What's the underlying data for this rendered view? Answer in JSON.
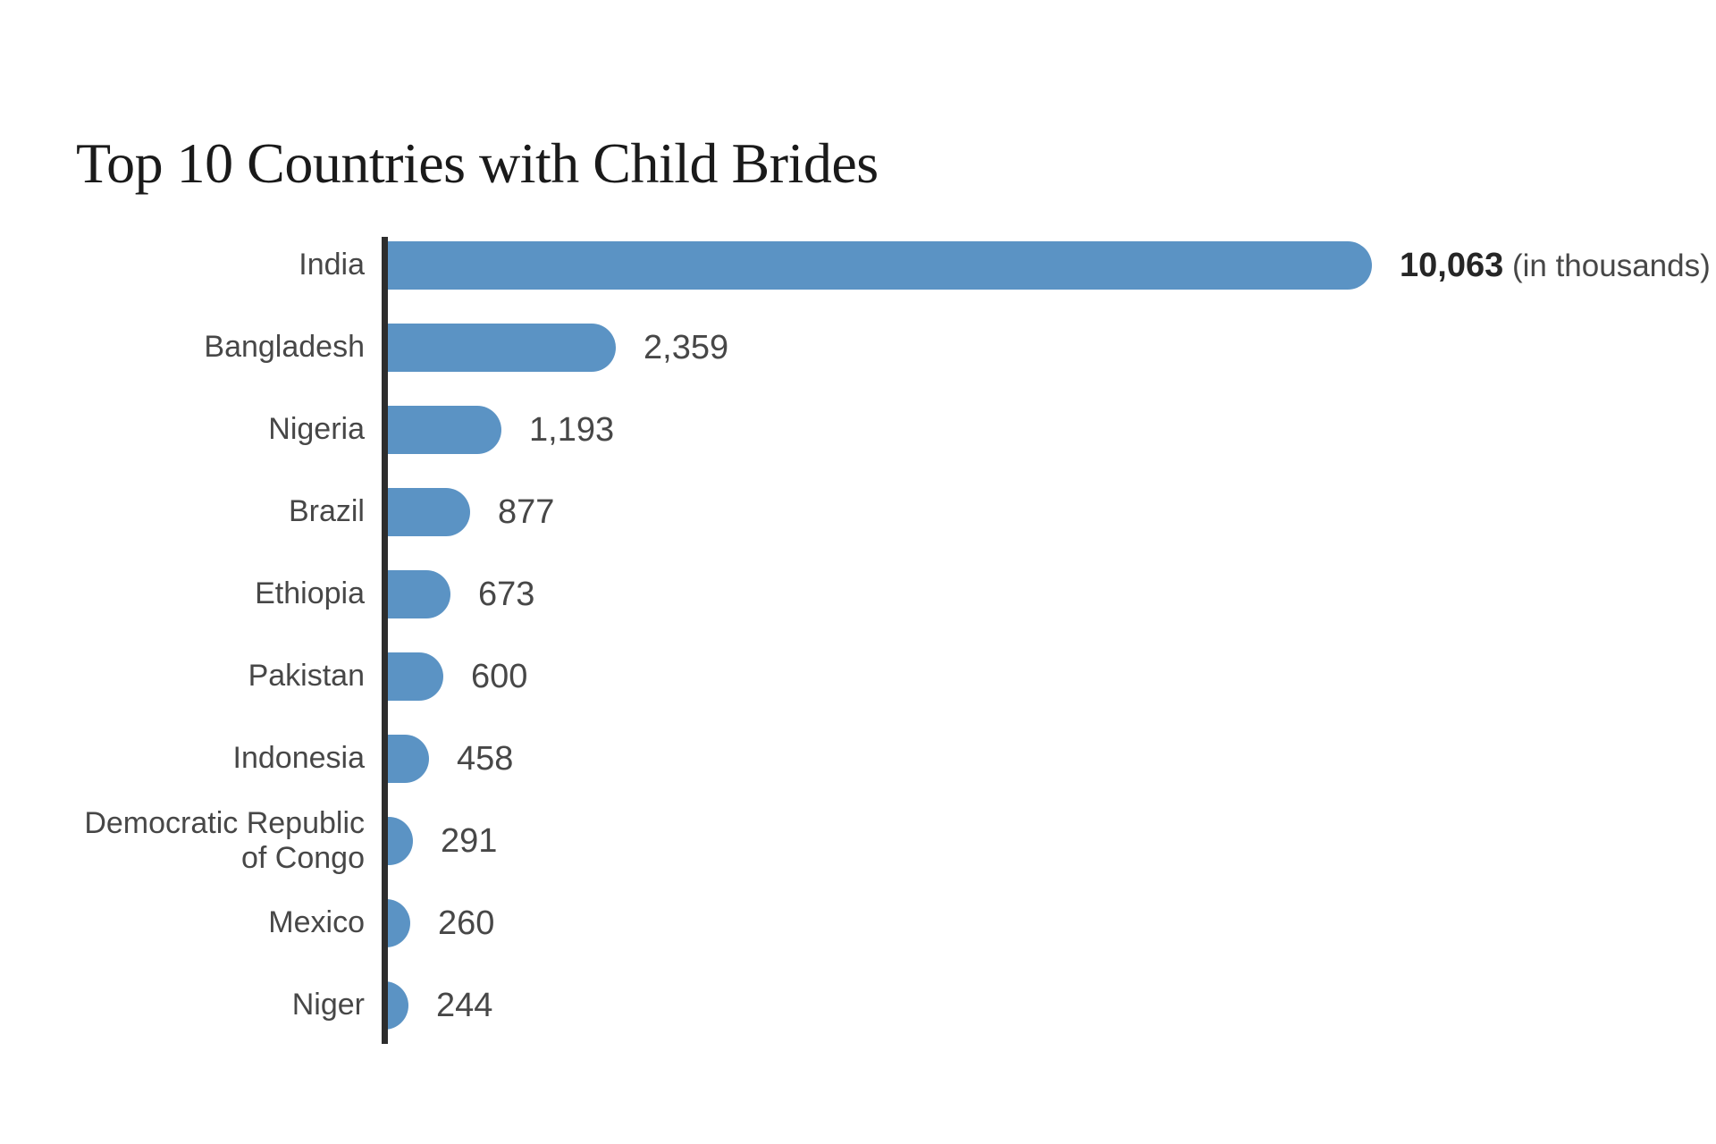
{
  "chart_data": {
    "type": "bar",
    "orientation": "horizontal",
    "title": "Top 10 Countries with Child Brides",
    "categories": [
      "India",
      "Bangladesh",
      "Nigeria",
      "Brazil",
      "Ethiopia",
      "Pakistan",
      "Indonesia",
      "Democratic Republic of Congo",
      "Mexico",
      "Niger"
    ],
    "values": [
      10063,
      2359,
      1193,
      877,
      673,
      600,
      458,
      291,
      260,
      244
    ],
    "value_labels": [
      "10,063",
      "2,359",
      "1,193",
      "877",
      "673",
      "600",
      "458",
      "291",
      "260",
      "244"
    ],
    "unit_note": "(in thousands)",
    "unit_note_row": 0,
    "bold_value_row": 0,
    "xlim": [
      0,
      10063
    ],
    "grid": false,
    "legend": false,
    "bar_color": "#5b93c4",
    "axis_color": "#2d2d2d",
    "label_color": "#474747",
    "title_color": "#1a1a1a",
    "background_color": "#ffffff"
  }
}
